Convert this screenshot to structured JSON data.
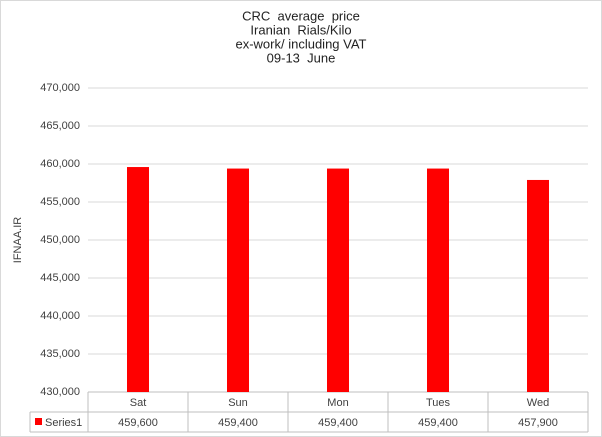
{
  "chart_data": {
    "type": "bar",
    "title": [
      "CRC  average  price",
      "Iranian  Rials/Kilo",
      "ex-work/ including VAT",
      "09-13  June"
    ],
    "ylabel": "IFNAA.IR",
    "categories": [
      "Sat",
      "Sun",
      "Mon",
      "Tues",
      "Wed"
    ],
    "series": [
      {
        "name": "Series1",
        "color": "#ff0000",
        "values": [
          459600,
          459400,
          459400,
          459400,
          457900
        ],
        "value_labels": [
          "459,600",
          "459,400",
          "459,400",
          "459,400",
          "457,900"
        ]
      }
    ],
    "ylim": [
      430000,
      470000
    ],
    "yticks": [
      {
        "value": 430000,
        "label": "430,000"
      },
      {
        "value": 435000,
        "label": "435,000"
      },
      {
        "value": 440000,
        "label": "440,000"
      },
      {
        "value": 445000,
        "label": "445,000"
      },
      {
        "value": 450000,
        "label": "450,000"
      },
      {
        "value": 455000,
        "label": "455,000"
      },
      {
        "value": 460000,
        "label": "460,000"
      },
      {
        "value": 465000,
        "label": "465,000"
      },
      {
        "value": 470000,
        "label": "470,000"
      }
    ],
    "grid": true
  }
}
